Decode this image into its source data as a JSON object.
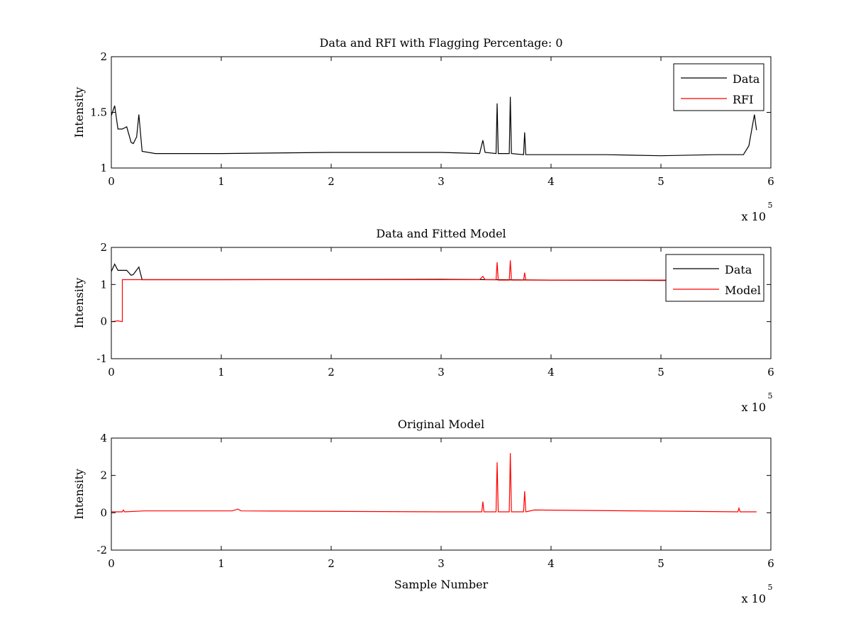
{
  "chart_data": [
    {
      "type": "line",
      "title": "Data and RFI with Flagging Percentage: 0",
      "xlabel": "",
      "ylabel": "Intensity",
      "xlim": [
        0,
        600000
      ],
      "ylim": [
        1,
        2
      ],
      "xticks": [
        0,
        1,
        2,
        3,
        4,
        5,
        6
      ],
      "yticks": [
        1,
        1.5,
        2
      ],
      "x_exponent": "x 10",
      "x_exponent_power": "5",
      "legend": {
        "placement": "top-right",
        "entries": [
          "Data",
          "RFI"
        ]
      },
      "grid": false,
      "series": [
        {
          "name": "Data",
          "color": "#000000",
          "x": [
            0,
            3000,
            6000,
            10000,
            14000,
            18000,
            20000,
            23000,
            25000,
            28000,
            40000,
            100000,
            200000,
            300000,
            335000,
            338000,
            340000,
            350000,
            351000,
            352000,
            362000,
            363000,
            364000,
            375000,
            376000,
            377000,
            400000,
            450000,
            500000,
            550000,
            570000,
            575000,
            580000,
            585000,
            587000
          ],
          "y": [
            1.47,
            1.56,
            1.35,
            1.35,
            1.37,
            1.23,
            1.22,
            1.28,
            1.48,
            1.15,
            1.13,
            1.13,
            1.14,
            1.14,
            1.13,
            1.25,
            1.14,
            1.13,
            1.58,
            1.13,
            1.13,
            1.64,
            1.13,
            1.12,
            1.32,
            1.12,
            1.12,
            1.12,
            1.11,
            1.12,
            1.12,
            1.12,
            1.2,
            1.48,
            1.34
          ]
        },
        {
          "name": "RFI",
          "color": "#ff0000",
          "x": [],
          "y": []
        }
      ]
    },
    {
      "type": "line",
      "title": "Data and Fitted Model",
      "xlabel": "",
      "ylabel": "Intensity",
      "xlim": [
        0,
        600000
      ],
      "ylim": [
        -1,
        2
      ],
      "xticks": [
        0,
        1,
        2,
        3,
        4,
        5,
        6
      ],
      "yticks": [
        -1,
        0,
        1,
        2
      ],
      "x_exponent": "x 10",
      "x_exponent_power": "5",
      "legend": {
        "placement": "top-right",
        "entries": [
          "Data",
          "Model"
        ]
      },
      "grid": false,
      "series": [
        {
          "name": "Data",
          "color": "#000000",
          "x": [
            0,
            3000,
            6000,
            14000,
            18000,
            20000,
            25000,
            28000,
            100000,
            300000,
            400000,
            500000,
            560000
          ],
          "y": [
            1.35,
            1.55,
            1.38,
            1.38,
            1.25,
            1.27,
            1.47,
            1.13,
            1.13,
            1.14,
            1.12,
            1.11,
            1.12
          ]
        },
        {
          "name": "Model",
          "color": "#ff0000",
          "x": [
            0,
            6000,
            10000,
            10000,
            100000,
            335000,
            338000,
            340000,
            350000,
            351000,
            352000,
            362000,
            363000,
            364000,
            375000,
            376000,
            377000,
            450000,
            560000
          ],
          "y": [
            0.0,
            0.02,
            0.0,
            1.13,
            1.13,
            1.13,
            1.22,
            1.13,
            1.13,
            1.6,
            1.12,
            1.12,
            1.65,
            1.12,
            1.12,
            1.32,
            1.12,
            1.12,
            1.12
          ]
        }
      ]
    },
    {
      "type": "line",
      "title": "Original Model",
      "xlabel": "Sample Number",
      "ylabel": "Intensity",
      "xlim": [
        0,
        600000
      ],
      "ylim": [
        -2,
        4
      ],
      "xticks": [
        0,
        1,
        2,
        3,
        4,
        5,
        6
      ],
      "yticks": [
        -2,
        0,
        2,
        4
      ],
      "x_exponent": "x 10",
      "x_exponent_power": "5",
      "legend": null,
      "grid": false,
      "series": [
        {
          "name": "",
          "color": "#ff0000",
          "x": [
            0,
            10000,
            11000,
            12000,
            30000,
            110000,
            115000,
            118000,
            300000,
            337000,
            338000,
            339000,
            350000,
            351000,
            352000,
            362000,
            363000,
            364000,
            375000,
            376000,
            377000,
            385000,
            570000,
            571000,
            572000,
            587000
          ],
          "y": [
            0.05,
            0.05,
            0.15,
            0.05,
            0.1,
            0.1,
            0.2,
            0.1,
            0.05,
            0.05,
            0.6,
            0.05,
            0.05,
            2.7,
            0.05,
            0.05,
            3.2,
            0.05,
            0.05,
            1.15,
            0.05,
            0.15,
            0.05,
            0.25,
            0.05,
            0.05
          ]
        }
      ]
    }
  ]
}
